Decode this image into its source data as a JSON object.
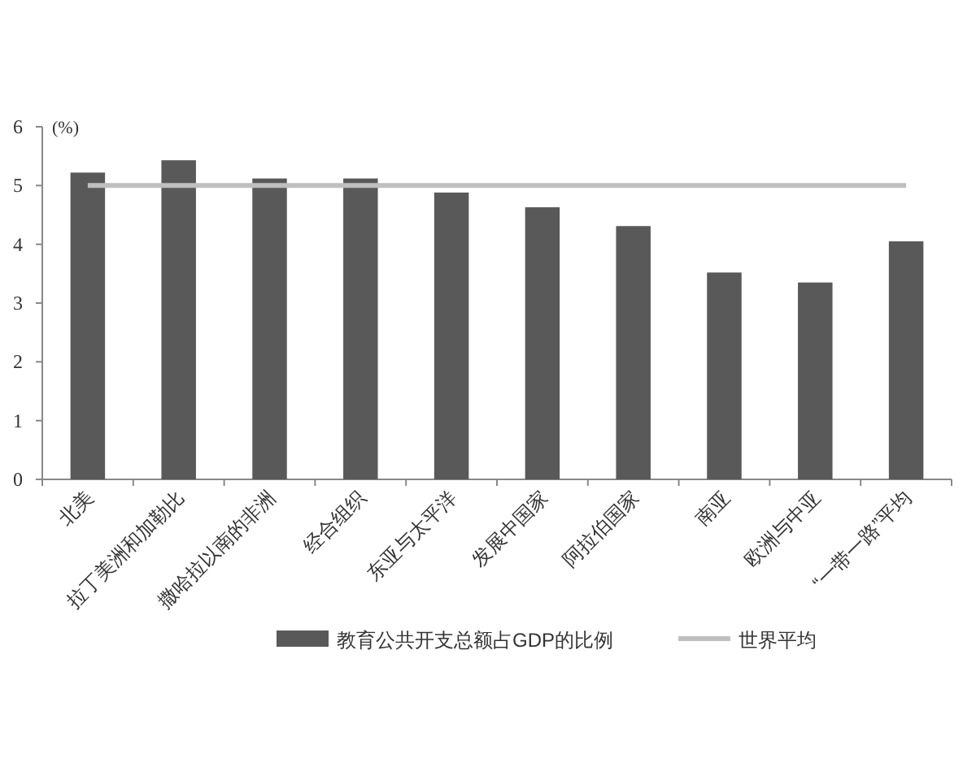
{
  "chart_data": {
    "type": "bar",
    "ylabel": "(%)",
    "categories": [
      "北美",
      "拉丁美洲和加勒比",
      "撒哈拉以南的非洲",
      "经合组织",
      "东亚与太平洋",
      "发展中国家",
      "阿拉伯国家",
      "南亚",
      "欧洲与中亚",
      "“一带一路”平均"
    ],
    "series": [
      {
        "name": "教育公共开支总额占GDP的比例",
        "color": "#595959",
        "values": [
          5.22,
          5.43,
          5.12,
          5.12,
          4.88,
          4.63,
          4.31,
          3.52,
          3.35,
          4.05
        ]
      },
      {
        "name": "世界平均",
        "type": "line",
        "color": "#bfbfbf",
        "values": [
          5,
          5,
          5,
          5,
          5,
          5,
          5,
          5,
          5,
          5
        ]
      }
    ],
    "ylim": [
      0,
      6
    ],
    "yticks": [
      0,
      1,
      2,
      3,
      4,
      5,
      6
    ],
    "legend": "bottom",
    "grid": false
  }
}
